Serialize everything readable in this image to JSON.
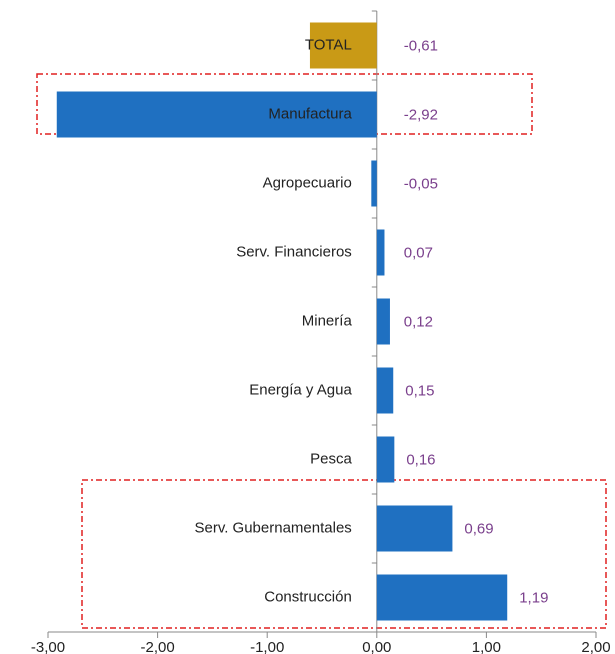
{
  "chart_data": {
    "type": "bar",
    "orientation": "horizontal",
    "categories": [
      "TOTAL",
      "Manufactura",
      "Agropecuario",
      "Serv. Financieros",
      "Minería",
      "Energía y Agua",
      "Pesca",
      "Serv. Gubernamentales",
      "Construcción"
    ],
    "values": [
      -0.61,
      -2.92,
      -0.05,
      0.07,
      0.12,
      0.15,
      0.16,
      0.69,
      1.19
    ],
    "value_labels": [
      "-0,61",
      "-2,92",
      "-0,05",
      "0,07",
      "0,12",
      "0,15",
      "0,16",
      "0,69",
      "1,19"
    ],
    "colors": [
      "#c99a16",
      "#1f70c1",
      "#1f70c1",
      "#1f70c1",
      "#1f70c1",
      "#1f70c1",
      "#1f70c1",
      "#1f70c1",
      "#1f70c1"
    ],
    "xlim": [
      -3,
      2
    ],
    "xticks": [
      {
        "value": -3,
        "label": "-3,00"
      },
      {
        "value": -2,
        "label": "-2,00"
      },
      {
        "value": -1,
        "label": "-1,00"
      },
      {
        "value": 0,
        "label": "0,00"
      },
      {
        "value": 1,
        "label": "1,00"
      },
      {
        "value": 2,
        "label": "2,00"
      }
    ],
    "grid": false
  }
}
